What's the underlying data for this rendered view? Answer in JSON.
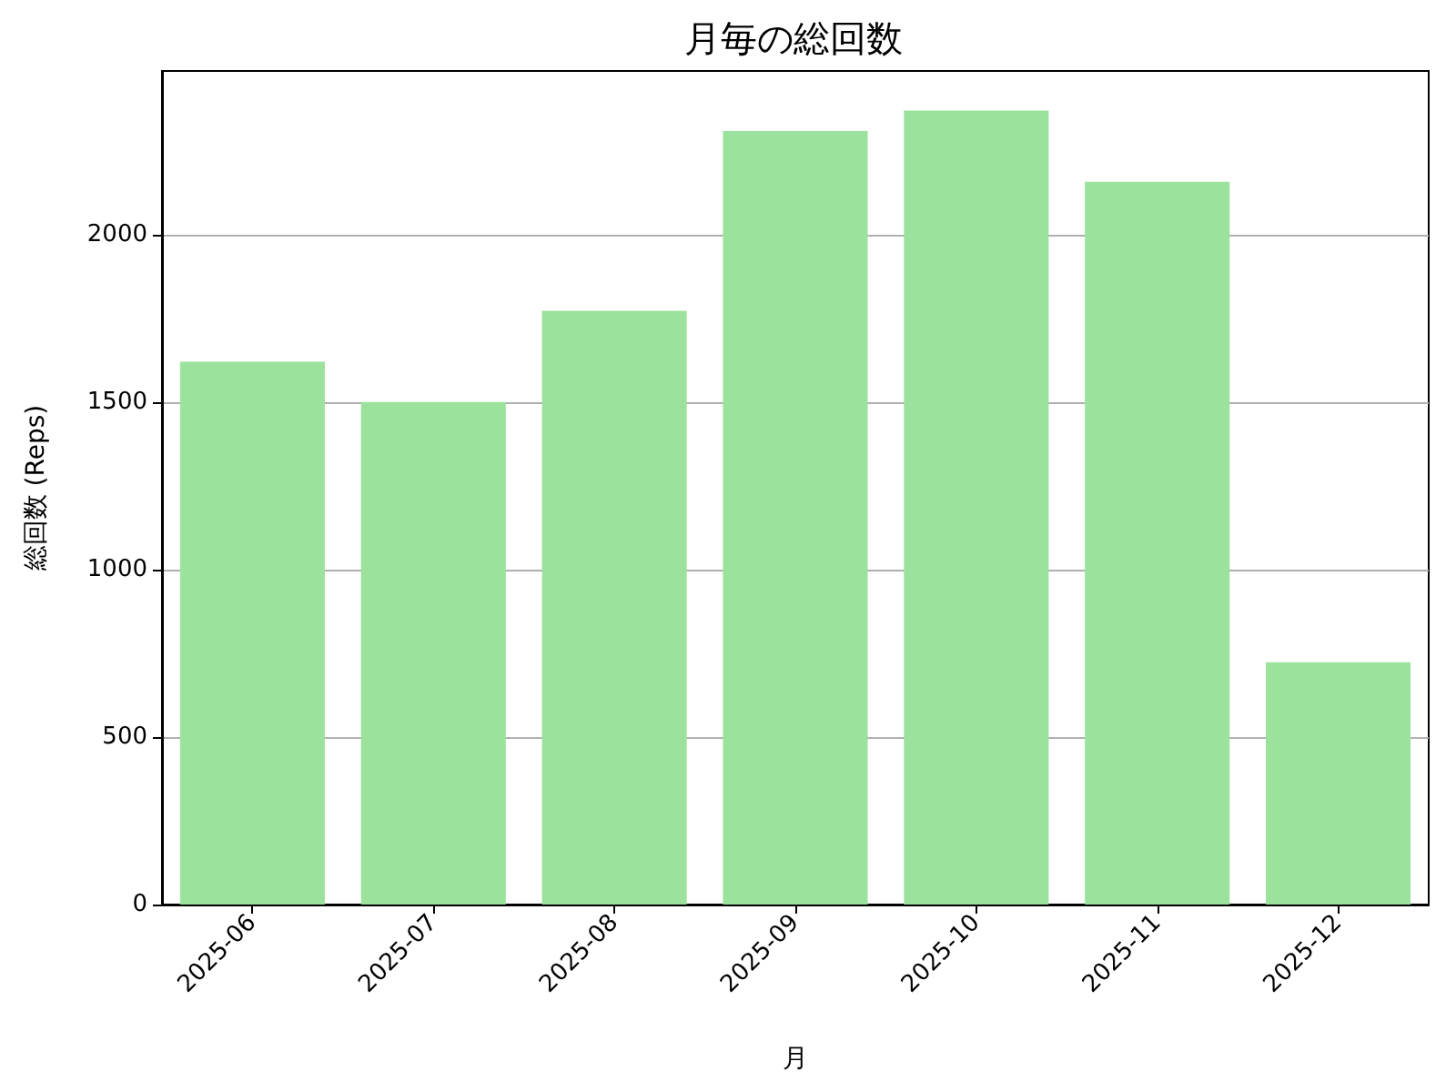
{
  "chart_data": {
    "type": "bar",
    "title": "月毎の総回数",
    "xlabel": "月",
    "ylabel": "総回数 (Reps)",
    "categories": [
      "2025-06",
      "2025-07",
      "2025-08",
      "2025-09",
      "2025-10",
      "2025-11",
      "2025-12"
    ],
    "values": [
      1620,
      1500,
      1772,
      2309,
      2370,
      2157,
      723
    ],
    "color": "#9be29c",
    "ylim": [
      0,
      2488
    ],
    "yticks": [
      0,
      500,
      1000,
      1500,
      2000
    ],
    "grid": "y"
  }
}
